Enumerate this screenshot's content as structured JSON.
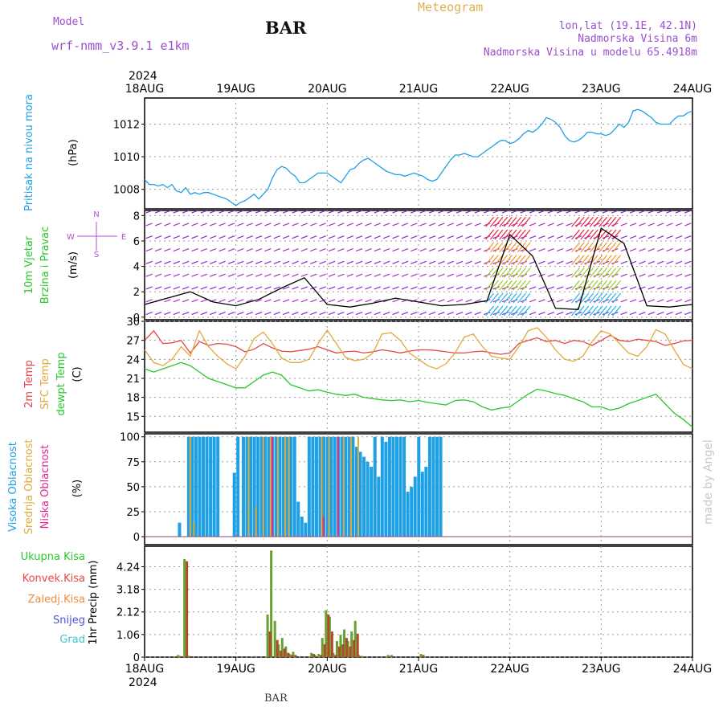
{
  "header": {
    "model_label": "Model",
    "model_value": "wrf-nmm_v3.9.1  e1km",
    "station": "BAR",
    "title": "Meteogram",
    "coords": "lon,lat (19.1E, 42.1N)",
    "elevation": "Nadmorska Visina 6m",
    "model_elevation": "Nadmorska Visina u modelu 65.4918m",
    "footer_station": "BAR",
    "credit": "made by Angel"
  },
  "time_axis": {
    "year": "2024",
    "ticks": [
      "18AUG",
      "19AUG",
      "20AUG",
      "21AUG",
      "22AUG",
      "23AUG",
      "24AUG"
    ]
  },
  "colors": {
    "pressure": "#1ea0e6",
    "temp2m": "#e64646",
    "sfc_temp": "#e0aa3c",
    "dewpoint": "#28c828",
    "wind": "#8c28dc",
    "cloud_high": "#1ea0e6",
    "cloud_mid": "#e0aa3c",
    "cloud_low": "#dc2890",
    "precip_total": "#28c828",
    "precip_conv": "#e64646",
    "precip_frz": "#f08c3c",
    "snow": "#5050dc",
    "graupel": "#3cc8c8",
    "axis_label_wind": "#28c828",
    "compass": "#b050d0"
  },
  "chart_data": [
    {
      "type": "line",
      "panel": "pressure",
      "ylabel_main": "Pritisak na nivou mora",
      "ylabel_unit": "(hPa)",
      "ylim": [
        1006.8,
        1013.6
      ],
      "yticks": [
        1008,
        1010,
        1012
      ],
      "grid": true,
      "x_days": [
        0.0,
        0.05,
        0.1,
        0.15,
        0.2,
        0.25,
        0.3,
        0.35,
        0.4,
        0.45,
        0.5,
        0.55,
        0.6,
        0.65,
        0.7,
        0.75,
        0.8,
        0.85,
        0.9,
        0.95,
        1.0,
        1.05,
        1.1,
        1.15,
        1.2,
        1.25,
        1.3,
        1.35,
        1.4,
        1.45,
        1.5,
        1.55,
        1.6,
        1.65,
        1.7,
        1.75,
        1.8,
        1.85,
        1.9,
        1.95,
        2.0,
        2.05,
        2.1,
        2.15,
        2.2,
        2.25,
        2.3,
        2.35,
        2.4,
        2.45,
        2.5,
        2.55,
        2.6,
        2.65,
        2.7,
        2.75,
        2.8,
        2.85,
        2.9,
        2.95,
        3.0,
        3.05,
        3.1,
        3.15,
        3.2,
        3.25,
        3.3,
        3.35,
        3.4,
        3.45,
        3.5,
        3.55,
        3.6,
        3.65,
        3.7,
        3.75,
        3.8,
        3.85,
        3.9,
        3.95,
        4.0,
        4.05,
        4.1,
        4.15,
        4.2,
        4.25,
        4.3,
        4.35,
        4.4,
        4.45,
        4.5,
        4.55,
        4.6,
        4.65,
        4.7,
        4.75,
        4.8,
        4.85,
        4.9,
        4.95,
        5.0,
        5.05,
        5.1,
        5.15,
        5.2,
        5.25,
        5.3,
        5.35,
        5.4,
        5.45,
        5.5,
        5.55,
        5.6,
        5.65,
        5.7,
        5.75,
        5.8,
        5.85,
        5.9,
        5.95,
        6.0
      ],
      "series": [
        {
          "values": [
            1008.6,
            1008.3,
            1008.3,
            1008.2,
            1008.3,
            1008.1,
            1008.3,
            1007.9,
            1007.8,
            1008.1,
            1007.7,
            1007.8,
            1007.7,
            1007.8,
            1007.8,
            1007.7,
            1007.6,
            1007.5,
            1007.4,
            1007.2,
            1007.0,
            1007.2,
            1007.3,
            1007.5,
            1007.7,
            1007.4,
            1007.7,
            1008.0,
            1008.7,
            1009.2,
            1009.4,
            1009.3,
            1009.0,
            1008.8,
            1008.4,
            1008.4,
            1008.6,
            1008.8,
            1009.0,
            1009.0,
            1009.0,
            1008.8,
            1008.6,
            1008.4,
            1008.8,
            1009.2,
            1009.3,
            1009.6,
            1009.8,
            1009.9,
            1009.7,
            1009.5,
            1009.3,
            1009.1,
            1009.0,
            1008.9,
            1008.9,
            1008.8,
            1008.9,
            1009.0,
            1008.9,
            1008.8,
            1008.6,
            1008.5,
            1008.6,
            1009.0,
            1009.4,
            1009.8,
            1010.1,
            1010.1,
            1010.2,
            1010.1,
            1010.0,
            1010.0,
            1010.2,
            1010.4,
            1010.6,
            1010.8,
            1011.0,
            1011.0,
            1010.8,
            1010.9,
            1011.1,
            1011.4,
            1011.6,
            1011.5,
            1011.7,
            1012.0,
            1012.4,
            1012.3,
            1012.1,
            1011.8,
            1011.3,
            1011.0,
            1010.9,
            1011.0,
            1011.2,
            1011.5,
            1011.5,
            1011.4,
            1011.4,
            1011.3,
            1011.4,
            1011.7,
            1012.0,
            1011.8,
            1012.1,
            1012.8,
            1012.9,
            1012.8,
            1012.6,
            1012.4,
            1012.1,
            1012.0,
            1012.0,
            1012.0,
            1012.3,
            1012.5,
            1012.5,
            1012.7,
            1012.8
          ]
        }
      ]
    },
    {
      "type": "wind_barbs",
      "panel": "wind",
      "ylabel_main": "10m Vjetar",
      "ylabel_sub": "Brzina i Pravac",
      "ylabel_unit": "(m/s)",
      "compass_labels": [
        "N",
        "S",
        "W",
        "E"
      ],
      "ylim": [
        -0.2,
        8.4
      ],
      "yticks": [
        0,
        2,
        4,
        6,
        8
      ],
      "grid": true,
      "x_days": [
        0.0,
        0.25,
        0.5,
        0.75,
        1.0,
        1.25,
        1.5,
        1.75,
        2.0,
        2.25,
        2.5,
        2.75,
        3.0,
        3.25,
        3.5,
        3.75,
        4.0,
        4.25,
        4.5,
        4.75,
        5.0,
        5.25,
        5.5,
        5.75,
        6.0
      ],
      "speed_ms": [
        1.0,
        1.5,
        2.0,
        1.2,
        0.9,
        1.4,
        2.3,
        3.1,
        1.0,
        0.8,
        1.1,
        1.5,
        1.2,
        0.9,
        1.0,
        1.3,
        6.5,
        4.8,
        0.7,
        0.6,
        7.0,
        5.8,
        0.9,
        0.8,
        1.0
      ]
    },
    {
      "type": "line",
      "panel": "temperature",
      "ylabel_1": "2m Temp",
      "ylabel_2": "SFC Temp",
      "ylabel_3": "dewpt Temp",
      "ylabel_unit": "(C)",
      "ylim": [
        12.5,
        30
      ],
      "yticks": [
        15,
        18,
        21,
        24,
        27,
        30
      ],
      "grid": true,
      "x_days": [
        0.0,
        0.1,
        0.2,
        0.3,
        0.4,
        0.5,
        0.6,
        0.7,
        0.8,
        0.9,
        1.0,
        1.1,
        1.2,
        1.3,
        1.4,
        1.5,
        1.6,
        1.7,
        1.8,
        1.9,
        2.0,
        2.1,
        2.2,
        2.3,
        2.4,
        2.5,
        2.6,
        2.7,
        2.8,
        2.9,
        3.0,
        3.1,
        3.2,
        3.3,
        3.4,
        3.5,
        3.6,
        3.7,
        3.8,
        3.9,
        4.0,
        4.1,
        4.2,
        4.3,
        4.4,
        4.5,
        4.6,
        4.7,
        4.8,
        4.9,
        5.0,
        5.1,
        5.2,
        5.3,
        5.4,
        5.5,
        5.6,
        5.7,
        5.8,
        5.9,
        6.0
      ],
      "series": [
        {
          "key": "temp2m",
          "values": [
            27.0,
            28.5,
            26.5,
            26.6,
            27.0,
            25.0,
            26.8,
            26.2,
            26.5,
            26.4,
            26.0,
            25.2,
            25.6,
            26.5,
            25.8,
            25.3,
            25.2,
            25.4,
            25.6,
            26.0,
            25.5,
            25.0,
            25.2,
            25.3,
            25.0,
            25.2,
            25.5,
            25.3,
            25.0,
            25.3,
            25.5,
            25.5,
            25.4,
            25.2,
            25.0,
            25.0,
            25.2,
            25.3,
            25.0,
            24.8,
            25.0,
            26.5,
            27.0,
            27.4,
            26.8,
            27.0,
            26.5,
            27.0,
            26.8,
            26.2,
            27.0,
            27.8,
            27.0,
            26.8,
            27.2,
            27.0,
            26.8,
            26.2,
            26.5,
            26.9,
            27.0
          ]
        },
        {
          "key": "sfc_temp",
          "values": [
            25.5,
            23.5,
            23.0,
            24.0,
            26.0,
            24.5,
            28.5,
            26.0,
            24.5,
            23.3,
            22.5,
            24.5,
            27.3,
            28.3,
            26.5,
            24.2,
            23.5,
            23.5,
            24.0,
            26.5,
            28.6,
            26.5,
            24.3,
            23.8,
            24.0,
            25.0,
            28.0,
            28.2,
            27.0,
            25.0,
            24.0,
            23.0,
            22.5,
            23.3,
            25.0,
            27.5,
            28.0,
            26.0,
            24.5,
            24.2,
            24.0,
            26.0,
            28.5,
            29.0,
            27.5,
            25.5,
            24.0,
            23.7,
            24.5,
            26.8,
            28.5,
            28.0,
            26.5,
            25.0,
            24.5,
            26.0,
            28.7,
            28.0,
            25.5,
            23.2,
            22.5
          ]
        },
        {
          "key": "dewpoint",
          "values": [
            22.5,
            22.0,
            22.5,
            23.0,
            23.5,
            23.0,
            22.0,
            21.0,
            20.5,
            20.0,
            19.5,
            19.5,
            20.5,
            21.5,
            22.0,
            21.5,
            20.0,
            19.5,
            19.0,
            19.2,
            18.8,
            18.5,
            18.3,
            18.5,
            18.0,
            17.8,
            17.6,
            17.5,
            17.6,
            17.3,
            17.5,
            17.2,
            17.0,
            16.8,
            17.5,
            17.6,
            17.3,
            16.5,
            16.0,
            16.3,
            16.5,
            17.5,
            18.5,
            19.3,
            19.0,
            18.6,
            18.3,
            17.8,
            17.3,
            16.5,
            16.5,
            16.0,
            16.3,
            17.0,
            17.5,
            18.0,
            18.5,
            17.0,
            15.5,
            14.5,
            13.3
          ]
        }
      ]
    },
    {
      "type": "bar",
      "panel": "clouds",
      "ylabel_1": "Visoka Oblacnost",
      "ylabel_2": "Srednja Oblacnost",
      "ylabel_3": "Niska Oblacnost",
      "ylabel_unit": "(%)",
      "ylim": [
        -8,
        103
      ],
      "yticks": [
        0,
        25,
        50,
        75,
        100
      ],
      "grid": true,
      "x_days": [
        0.4,
        0.5,
        0.54,
        0.58,
        0.62,
        0.66,
        0.7,
        0.74,
        0.78,
        0.82,
        1.0,
        1.04,
        1.1,
        1.14,
        1.18,
        1.22,
        1.26,
        1.3,
        1.34,
        1.38,
        1.42,
        1.46,
        1.5,
        1.54,
        1.58,
        1.62,
        1.66,
        1.7,
        1.74,
        1.78,
        1.82,
        1.86,
        1.9,
        1.94,
        1.98,
        2.02,
        2.06,
        2.1,
        2.14,
        2.18,
        2.22,
        2.26,
        2.3,
        2.34,
        2.38,
        2.42,
        2.46,
        2.5,
        2.54,
        2.58,
        2.62,
        2.66,
        2.7,
        2.74,
        2.78,
        2.82,
        2.86,
        2.9,
        2.94,
        2.98,
        3.02,
        3.06,
        3.1,
        3.14,
        3.18,
        3.22,
        3.26
      ],
      "series": [
        {
          "key": "cloud_high",
          "values": [
            14,
            100,
            100,
            100,
            100,
            100,
            100,
            100,
            100,
            100,
            64,
            100,
            100,
            100,
            100,
            100,
            100,
            100,
            100,
            100,
            100,
            100,
            100,
            100,
            100,
            100,
            100,
            35,
            20,
            14,
            100,
            100,
            100,
            100,
            100,
            100,
            100,
            100,
            100,
            100,
            100,
            100,
            100,
            90,
            85,
            80,
            75,
            70,
            100,
            60,
            100,
            95,
            100,
            100,
            100,
            100,
            100,
            45,
            50,
            60,
            100,
            65,
            70,
            100,
            100,
            100,
            100
          ]
        },
        {
          "key": "cloud_mid",
          "values": [
            0,
            100,
            15,
            0,
            0,
            0,
            0,
            0,
            0,
            0,
            0,
            0,
            0,
            100,
            0,
            30,
            0,
            100,
            0,
            100,
            0,
            100,
            0,
            100,
            100,
            0,
            0,
            0,
            0,
            0,
            0,
            0,
            0,
            100,
            0,
            100,
            0,
            0,
            0,
            100,
            0,
            100,
            0,
            100,
            0,
            0,
            0,
            0,
            0,
            0,
            0,
            0,
            0,
            0,
            0,
            0,
            0,
            0,
            0,
            0,
            0,
            0,
            0,
            0,
            0,
            0,
            0
          ]
        },
        {
          "key": "cloud_low",
          "values": [
            0,
            0,
            0,
            0,
            0,
            0,
            0,
            0,
            0,
            0,
            0,
            0,
            0,
            0,
            0,
            0,
            0,
            0,
            0,
            100,
            0,
            0,
            0,
            0,
            0,
            0,
            0,
            0,
            0,
            0,
            0,
            0,
            0,
            20,
            0,
            0,
            0,
            100,
            0,
            0,
            0,
            0,
            0,
            0,
            0,
            0,
            0,
            0,
            0,
            0,
            0,
            0,
            0,
            0,
            0,
            0,
            0,
            0,
            0,
            0,
            0,
            0,
            0,
            0,
            0,
            0,
            0
          ]
        }
      ]
    },
    {
      "type": "bar",
      "panel": "precip",
      "ylabel_main": "1hr Precip (mm)",
      "legend": [
        "Ukupna Kisa",
        "Konvek.Kisa",
        "Zaledj.Kisa",
        "Snijeg",
        "Grad"
      ],
      "ylim": [
        0,
        5.2
      ],
      "yticks": [
        0,
        1.06,
        2.12,
        3.18,
        4.24
      ],
      "grid": true,
      "x_days": [
        0.38,
        0.45,
        0.48,
        1.22,
        1.36,
        1.4,
        1.44,
        1.48,
        1.52,
        1.56,
        1.6,
        1.64,
        1.84,
        1.88,
        1.92,
        1.96,
        2.0,
        2.04,
        2.08,
        2.12,
        2.16,
        2.2,
        2.24,
        2.28,
        2.32,
        2.36,
        2.4,
        2.68,
        2.72,
        3.04
      ],
      "series": [
        {
          "key": "precip_total",
          "values": [
            0.1,
            4.6,
            0.08,
            0.05,
            2.0,
            5.0,
            1.7,
            0.6,
            0.9,
            0.5,
            0.15,
            0.25,
            0.2,
            0.1,
            0.15,
            0.9,
            2.2,
            1.9,
            0.2,
            0.75,
            1.05,
            1.3,
            0.75,
            1.2,
            1.7,
            0.1,
            0.05,
            0.1,
            0.1,
            0.15
          ]
        },
        {
          "key": "precip_conv",
          "values": [
            0.05,
            4.5,
            0.05,
            0,
            1.2,
            0,
            0.8,
            0.3,
            0.4,
            0.2,
            0.1,
            0.1,
            0.15,
            0,
            0.1,
            0.6,
            2.0,
            1.2,
            0.1,
            0.5,
            0.6,
            0.9,
            0.5,
            0.8,
            1.1,
            0.05,
            0,
            0.05,
            0,
            0.1
          ]
        }
      ]
    }
  ]
}
